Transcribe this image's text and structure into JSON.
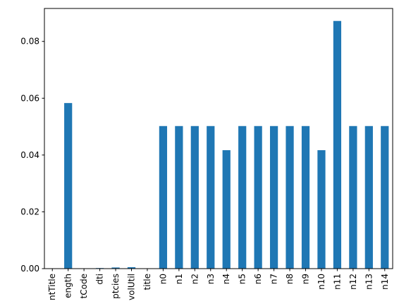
{
  "chart_data": {
    "type": "bar",
    "title": "",
    "xlabel": "",
    "ylabel": "",
    "categories": [
      "ntTitle",
      "ength",
      "tCode",
      "dti",
      "ptcies",
      "volUtil",
      "title",
      "n0",
      "n1",
      "n2",
      "n3",
      "n4",
      "n5",
      "n6",
      "n7",
      "n8",
      "n9",
      "n10",
      "n11",
      "n12",
      "n13",
      "n14"
    ],
    "values": [
      0.0,
      0.0583,
      0.0,
      0.0002,
      0.0004,
      0.0005,
      0.0,
      0.0502,
      0.0502,
      0.0502,
      0.0502,
      0.0417,
      0.0502,
      0.0502,
      0.0502,
      0.0502,
      0.0502,
      0.0417,
      0.0872,
      0.0502,
      0.0502,
      0.0502
    ],
    "yticks": [
      0.0,
      0.02,
      0.04,
      0.06,
      0.08
    ],
    "ytick_labels": [
      "0.00",
      "0.02",
      "0.04",
      "0.06",
      "0.08"
    ],
    "ylim": [
      0,
      0.0916
    ],
    "bar_color": "#1f77b4",
    "grid": false,
    "legend": "none"
  }
}
